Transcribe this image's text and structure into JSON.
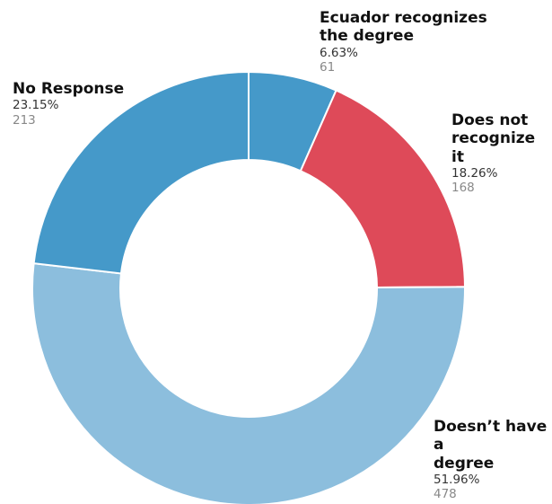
{
  "chart_data": {
    "type": "pie",
    "donut": true,
    "slices": [
      {
        "name": "Ecuador recognizes\nthe degree",
        "percent": "6.63%",
        "percent_value": 6.63,
        "count": "61",
        "value": 61,
        "color": "#4599c9"
      },
      {
        "name": "Does not\nrecognize it",
        "percent": "18.26%",
        "percent_value": 18.26,
        "count": "168",
        "value": 168,
        "color": "#de4a59"
      },
      {
        "name": "Doesn’t have a\ndegree",
        "percent": "51.96%",
        "percent_value": 51.96,
        "count": "478",
        "value": 478,
        "color": "#8cbedd"
      },
      {
        "name": "No Response",
        "percent": "23.15%",
        "percent_value": 23.15,
        "count": "213",
        "value": 213,
        "color": "#4599c9"
      }
    ],
    "start_angle": "12 o'clock",
    "direction": "clockwise",
    "legend": "none"
  }
}
